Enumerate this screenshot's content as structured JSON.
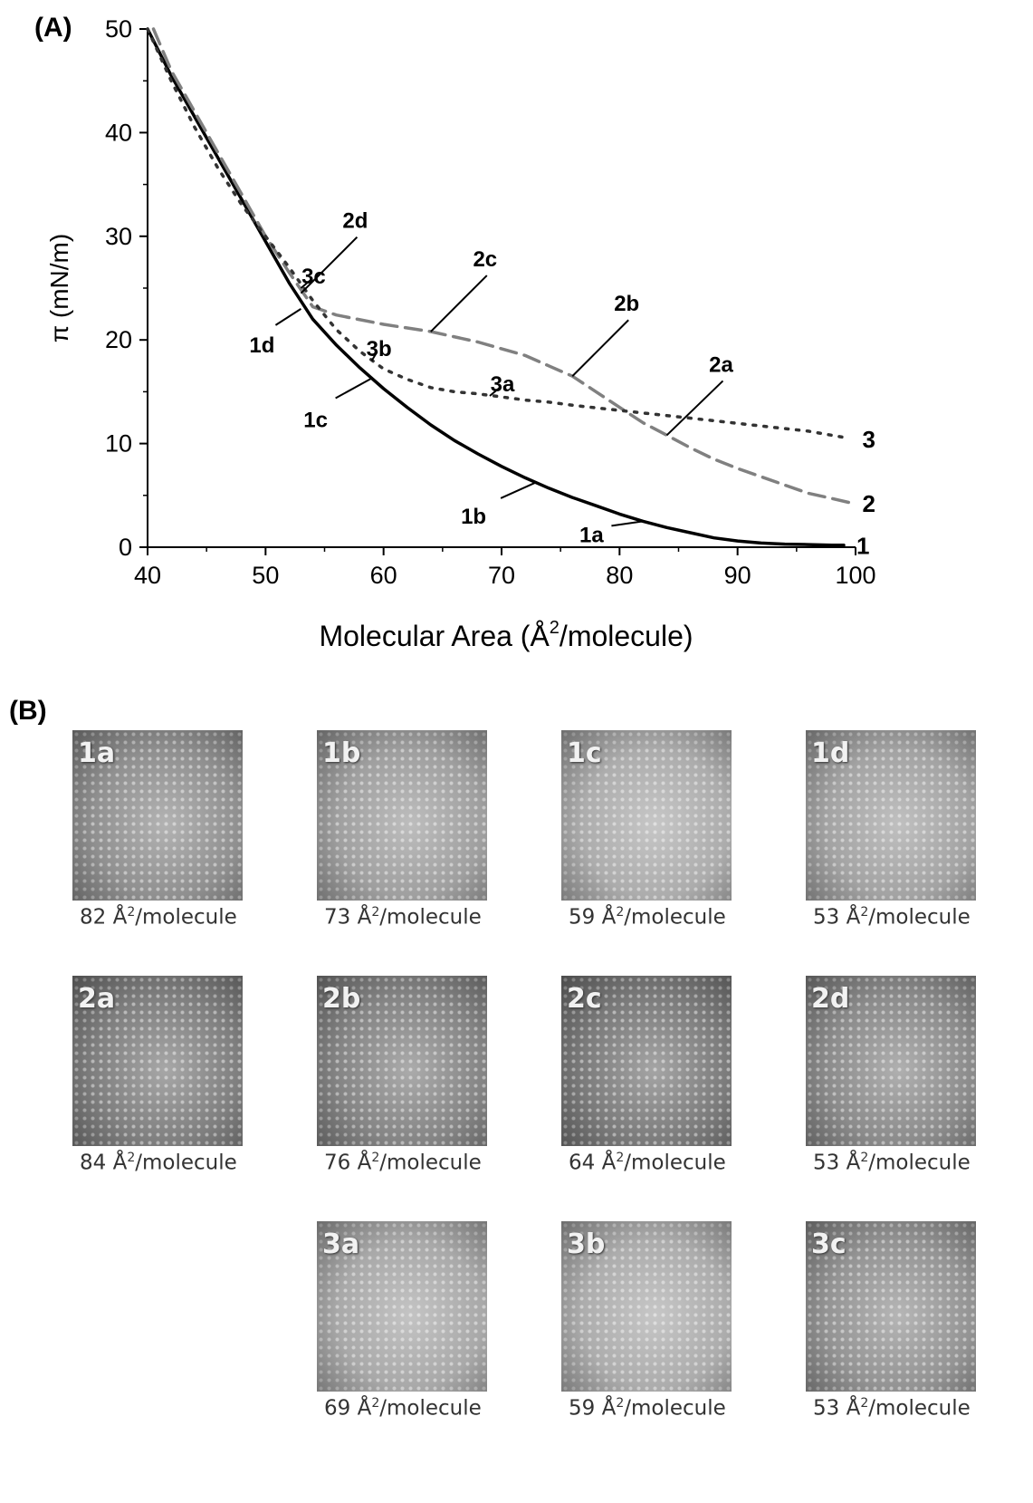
{
  "panel_a": {
    "label": "(A)"
  },
  "panel_b": {
    "label": "(B)"
  },
  "chart_data": {
    "type": "line",
    "xlabel_main": "Molecular Area (Å",
    "xlabel_sup": "2",
    "xlabel_end": "/molecule)",
    "ylabel": "π (mN/m)",
    "xlim": [
      40,
      100
    ],
    "ylim": [
      0,
      50
    ],
    "x_ticks": [
      "40",
      "50",
      "60",
      "70",
      "80",
      "90",
      "100"
    ],
    "y_ticks": [
      "0",
      "10",
      "20",
      "30",
      "40",
      "50"
    ],
    "grid": false,
    "series": [
      {
        "name": "1",
        "style": "solid",
        "color": "#000000",
        "x": [
          40,
          42,
          44,
          46,
          48,
          50,
          52,
          54,
          56,
          58,
          60,
          62,
          64,
          66,
          68,
          70,
          72,
          74,
          76,
          78,
          80,
          82,
          84,
          86,
          88,
          90,
          92,
          94,
          96,
          98,
          99
        ],
        "y": [
          50,
          45.5,
          41.5,
          37.5,
          33.5,
          29.5,
          25.5,
          22,
          19.5,
          17.3,
          15.3,
          13.5,
          11.8,
          10.3,
          9,
          7.8,
          6.7,
          5.7,
          4.8,
          4,
          3.2,
          2.5,
          1.9,
          1.4,
          0.9,
          0.6,
          0.4,
          0.3,
          0.25,
          0.2,
          0.2
        ]
      },
      {
        "name": "2",
        "style": "dashed",
        "color": "#808080",
        "x": [
          40.5,
          42,
          44,
          46,
          48,
          50,
          52,
          54,
          56,
          60,
          64,
          68,
          72,
          74,
          76,
          78,
          80,
          82,
          84,
          86,
          88,
          90,
          92,
          94,
          96,
          98,
          99.5
        ],
        "y": [
          50,
          46,
          42,
          38,
          34,
          30,
          26.5,
          23.2,
          22.4,
          21.5,
          20.8,
          19.8,
          18.5,
          17.5,
          16.5,
          15,
          13.5,
          12,
          10.8,
          9.6,
          8.5,
          7.6,
          6.8,
          6,
          5.2,
          4.7,
          4.3
        ]
      },
      {
        "name": "3",
        "style": "dotted",
        "color": "#333333",
        "x": [
          40,
          42,
          44,
          46,
          48,
          50,
          52,
          54,
          56,
          58,
          60,
          62,
          64,
          66,
          68,
          70,
          72,
          74,
          76,
          80,
          84,
          88,
          92,
          96,
          99.5
        ],
        "y": [
          50,
          45,
          40.5,
          36.5,
          33,
          30,
          27,
          23.8,
          21,
          18.9,
          17.2,
          16.2,
          15.4,
          15,
          14.8,
          14.5,
          14.2,
          14,
          13.7,
          13.2,
          12.7,
          12.2,
          11.7,
          11.2,
          10.5
        ]
      }
    ],
    "series_end_labels": [
      "1",
      "2",
      "3"
    ],
    "annotations": [
      {
        "text": "1a",
        "x": 82,
        "y": 2.5
      },
      {
        "text": "1b",
        "x": 73,
        "y": 6.3
      },
      {
        "text": "1c",
        "x": 59,
        "y": 16.3
      },
      {
        "text": "1d",
        "x": 53,
        "y": 23
      },
      {
        "text": "2a",
        "x": 84,
        "y": 10.8
      },
      {
        "text": "2b",
        "x": 76,
        "y": 16.5
      },
      {
        "text": "2c",
        "x": 64,
        "y": 20.8
      },
      {
        "text": "2d",
        "x": 53,
        "y": 24.5
      },
      {
        "text": "3a",
        "x": 69,
        "y": 14.6
      },
      {
        "text": "3b",
        "x": 59,
        "y": 18
      },
      {
        "text": "3c",
        "x": 53,
        "y": 25
      }
    ]
  },
  "tiles": [
    {
      "label": "1a",
      "area": "82",
      "brightness": "#8a8a8a"
    },
    {
      "label": "1b",
      "area": "73",
      "brightness": "#9a9a9a"
    },
    {
      "label": "1c",
      "area": "59",
      "brightness": "#a8a8a8"
    },
    {
      "label": "1d",
      "area": "53",
      "brightness": "#9e9e9e"
    },
    {
      "label": "2a",
      "area": "84",
      "brightness": "#787878"
    },
    {
      "label": "2b",
      "area": "76",
      "brightness": "#7e7e7e"
    },
    {
      "label": "2c",
      "area": "64",
      "brightness": "#747474"
    },
    {
      "label": "2d",
      "area": "53",
      "brightness": "#858585"
    },
    {
      "label": "3a",
      "area": "69",
      "brightness": "#a4a4a4"
    },
    {
      "label": "3b",
      "area": "59",
      "brightness": "#a8a8a8"
    },
    {
      "label": "3c",
      "area": "53",
      "brightness": "#8e8e8e"
    }
  ],
  "caption_unit_pre": " Å",
  "caption_unit_sup": "2",
  "caption_unit_post": "/molecule"
}
